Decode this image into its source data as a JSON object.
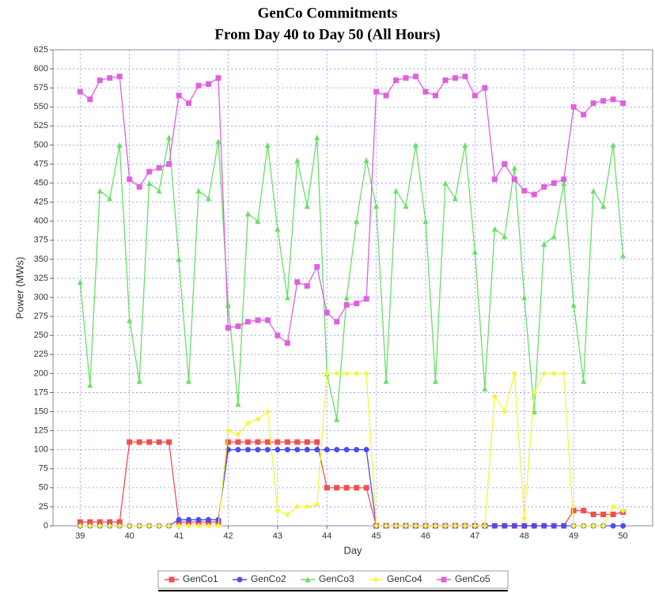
{
  "chart_data": {
    "type": "line",
    "title": "GenCo Commitments",
    "subtitle": "From Day 40 to Day 50 (All Hours)",
    "xlabel": "Day",
    "ylabel": "Power (MWs)",
    "x": [
      39,
      39.2,
      39.4,
      39.6,
      39.8,
      40,
      40.2,
      40.4,
      40.6,
      40.8,
      41,
      41.2,
      41.4,
      41.6,
      41.8,
      42,
      42.2,
      42.4,
      42.6,
      42.8,
      43,
      43.2,
      43.4,
      43.6,
      43.8,
      44,
      44.2,
      44.4,
      44.6,
      44.8,
      45,
      45.2,
      45.4,
      45.6,
      45.8,
      46,
      46.2,
      46.4,
      46.6,
      46.8,
      47,
      47.2,
      47.4,
      47.6,
      47.8,
      48,
      48.2,
      48.4,
      48.6,
      48.8,
      49,
      49.2,
      49.4,
      49.6,
      49.8,
      50
    ],
    "xlim": [
      38.45,
      50.6
    ],
    "xticks": [
      39,
      40,
      41,
      42,
      43,
      44,
      45,
      46,
      47,
      48,
      49,
      50
    ],
    "ylim": [
      0,
      625
    ],
    "yticks": [
      0,
      25,
      50,
      75,
      100,
      125,
      150,
      175,
      200,
      225,
      250,
      275,
      300,
      325,
      350,
      375,
      400,
      425,
      450,
      475,
      500,
      525,
      550,
      575,
      600,
      625
    ],
    "grid": true,
    "legend": "bottom",
    "series": [
      {
        "name": "GenCo1",
        "color": "#f05050",
        "marker": "square",
        "values": [
          5,
          5,
          5,
          5,
          5,
          110,
          110,
          110,
          110,
          110,
          5,
          5,
          5,
          5,
          5,
          110,
          110,
          110,
          110,
          110,
          110,
          110,
          110,
          110,
          110,
          50,
          50,
          50,
          50,
          50,
          0,
          0,
          0,
          0,
          0,
          0,
          0,
          0,
          0,
          0,
          0,
          0,
          0,
          0,
          0,
          0,
          0,
          0,
          0,
          0,
          20,
          20,
          15,
          15,
          15,
          18
        ]
      },
      {
        "name": "GenCo2",
        "color": "#4c4cf0",
        "marker": "circle",
        "values": [
          0,
          0,
          0,
          0,
          0,
          0,
          0,
          0,
          0,
          0,
          8,
          8,
          8,
          8,
          8,
          100,
          100,
          100,
          100,
          100,
          100,
          100,
          100,
          100,
          100,
          100,
          100,
          100,
          100,
          100,
          0,
          0,
          0,
          0,
          0,
          0,
          0,
          0,
          0,
          0,
          0,
          0,
          0,
          0,
          0,
          0,
          0,
          0,
          0,
          0,
          0,
          0,
          0,
          0,
          0,
          0
        ]
      },
      {
        "name": "GenCo3",
        "color": "#66e066",
        "marker": "triangle",
        "values": [
          320,
          185,
          440,
          430,
          500,
          270,
          190,
          450,
          440,
          510,
          350,
          190,
          440,
          430,
          505,
          290,
          160,
          410,
          400,
          500,
          390,
          300,
          480,
          420,
          510,
          200,
          140,
          300,
          400,
          480,
          420,
          190,
          440,
          420,
          500,
          400,
          190,
          450,
          430,
          500,
          360,
          180,
          390,
          380,
          470,
          300,
          150,
          370,
          380,
          450,
          290,
          190,
          440,
          420,
          500,
          355
        ]
      },
      {
        "name": "GenCo4",
        "color": "#f5f53c",
        "marker": "diamond",
        "values": [
          0,
          0,
          0,
          0,
          0,
          0,
          0,
          0,
          0,
          0,
          0,
          0,
          0,
          0,
          0,
          125,
          120,
          135,
          140,
          150,
          20,
          15,
          25,
          25,
          28,
          200,
          200,
          200,
          200,
          200,
          0,
          0,
          0,
          0,
          0,
          0,
          0,
          0,
          0,
          0,
          0,
          0,
          170,
          150,
          200,
          10,
          175,
          200,
          200,
          200,
          0,
          0,
          0,
          0,
          25,
          20
        ]
      },
      {
        "name": "GenCo5",
        "color": "#e060e0",
        "marker": "square",
        "values": [
          570,
          560,
          585,
          588,
          590,
          455,
          445,
          465,
          470,
          475,
          565,
          555,
          578,
          580,
          588,
          260,
          262,
          268,
          270,
          270,
          250,
          240,
          320,
          315,
          340,
          280,
          268,
          290,
          292,
          298,
          570,
          565,
          585,
          588,
          590,
          570,
          565,
          585,
          588,
          590,
          565,
          575,
          455,
          475,
          455,
          440,
          435,
          445,
          450,
          455,
          550,
          540,
          555,
          558,
          560,
          555
        ]
      }
    ]
  }
}
